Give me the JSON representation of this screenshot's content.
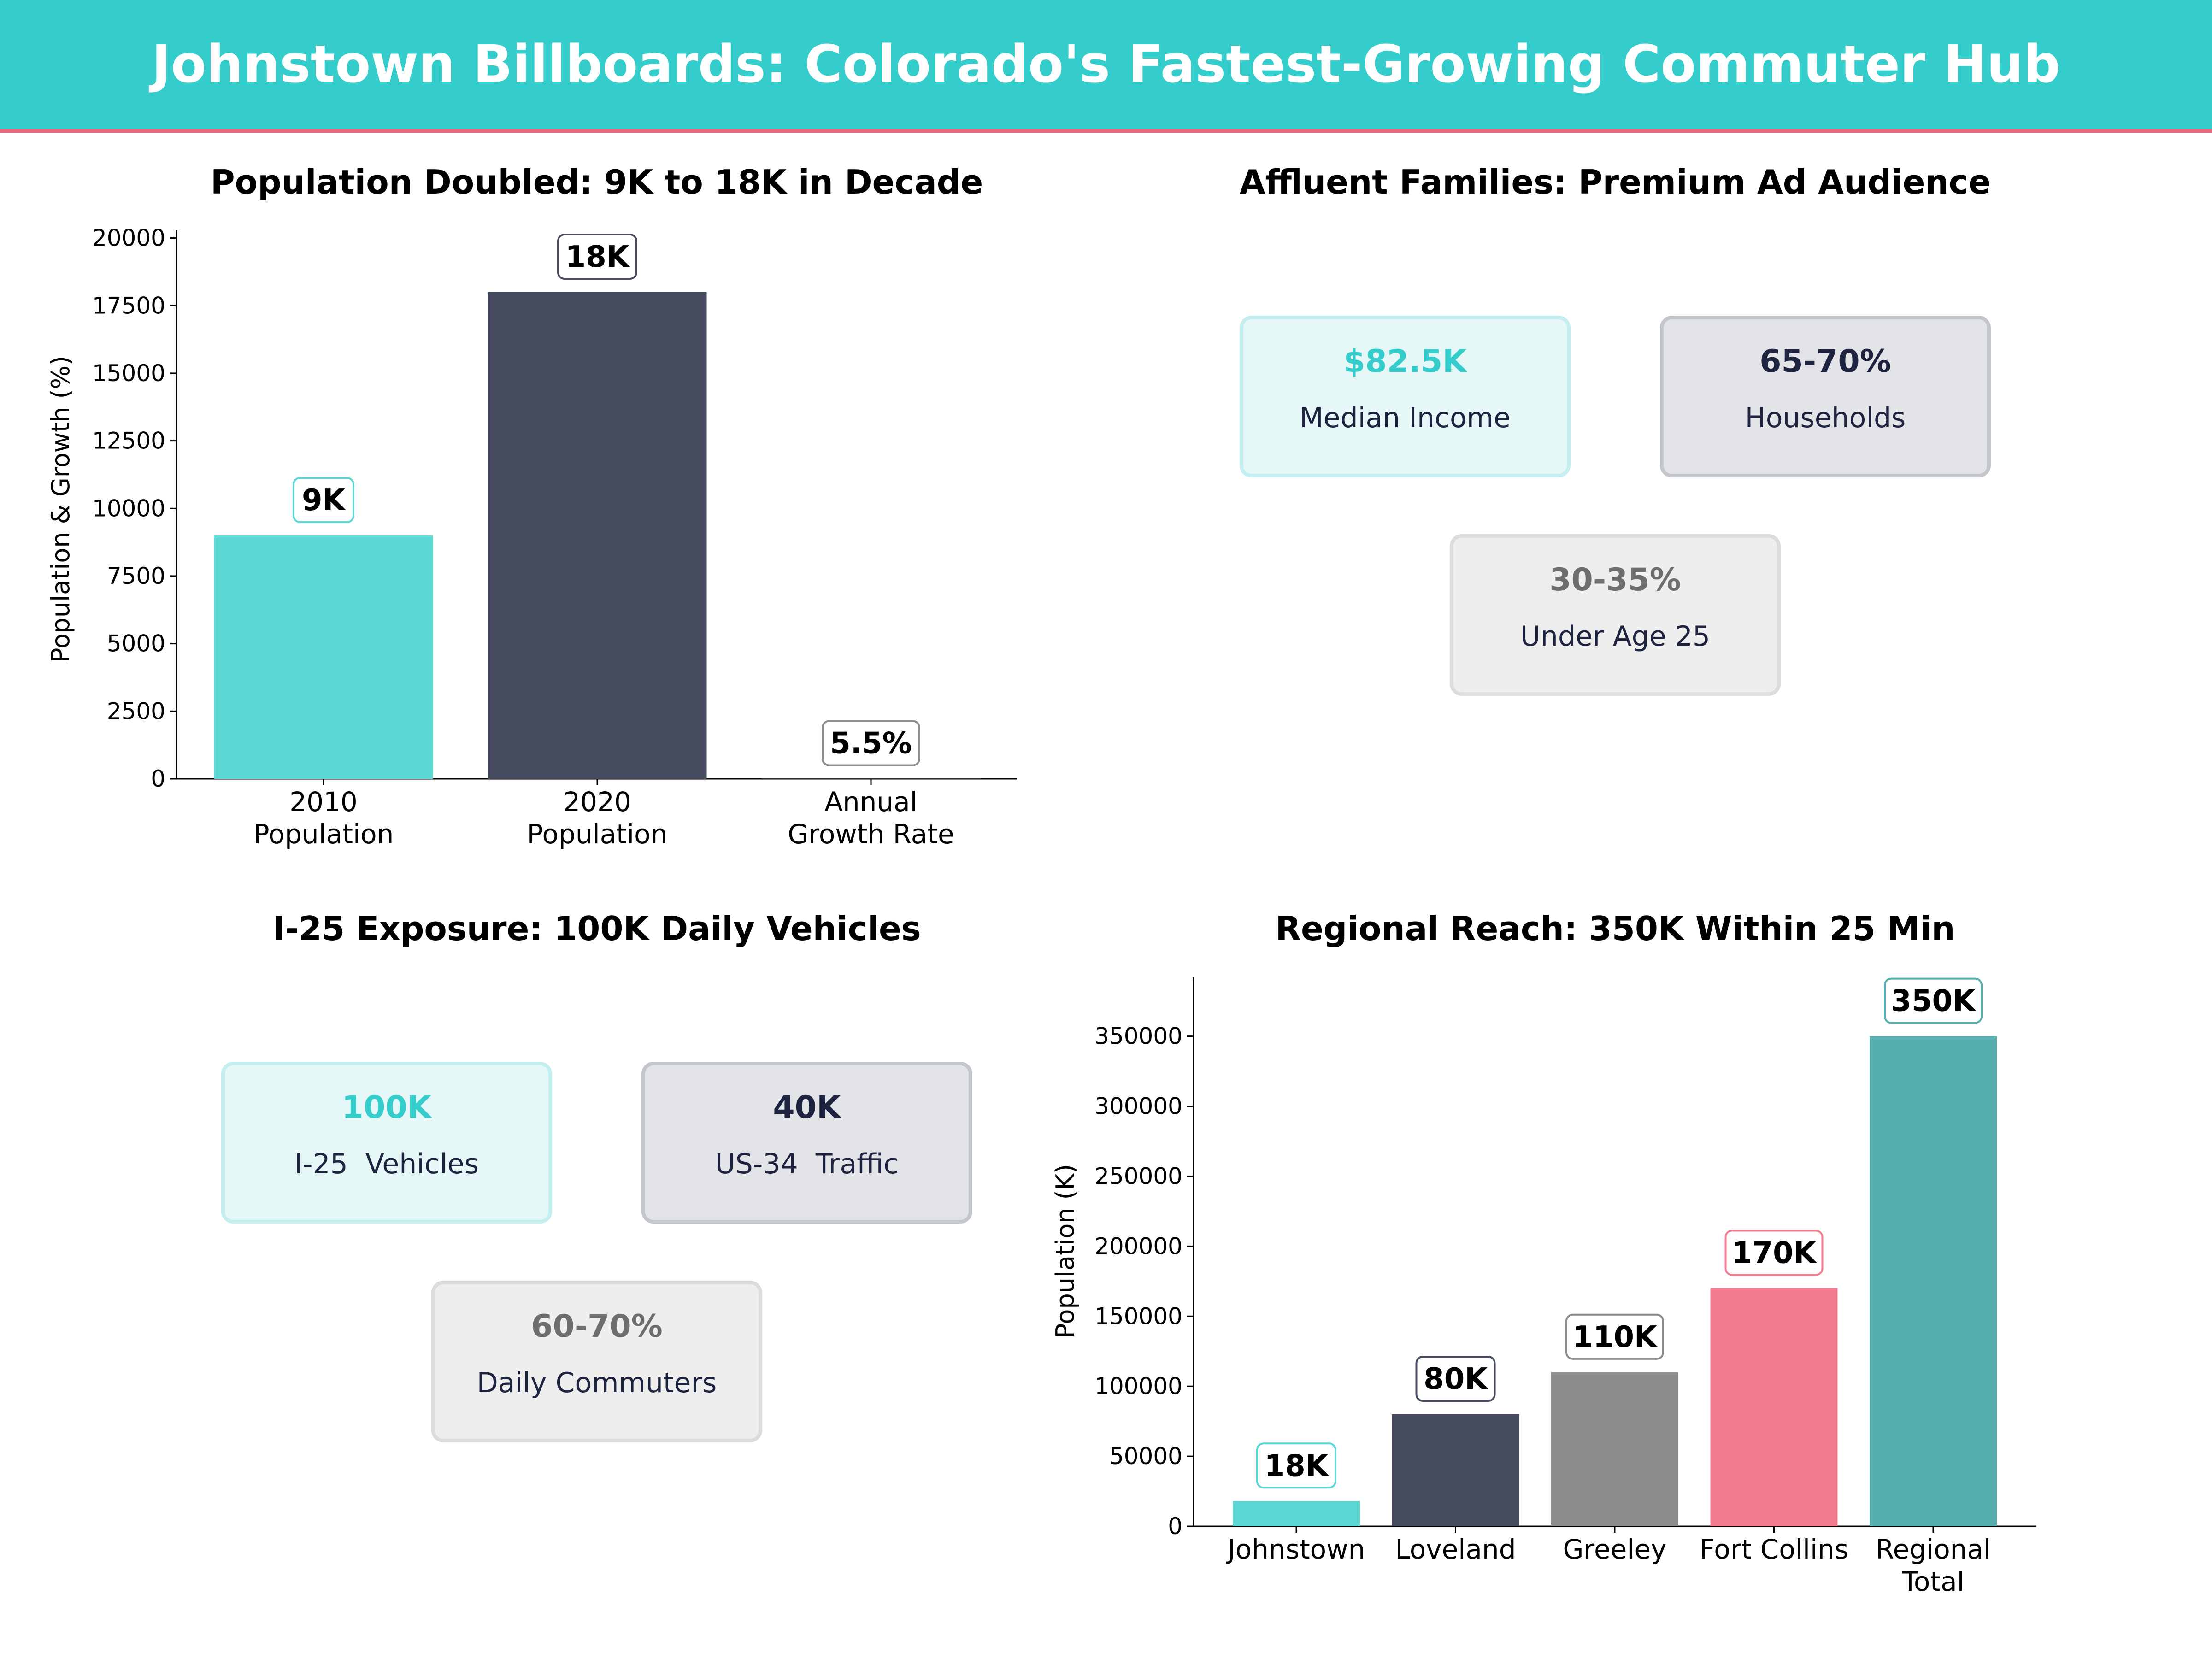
{
  "header": {
    "title": "Johnstown Billboards: Colorado's Fastest-Growing Commuter Hub",
    "bg_color": "#35CCCC",
    "accent_line_color": "#E8677A"
  },
  "chart_data": [
    {
      "type": "bar",
      "title": "Population Doubled: 9K to 18K in Decade",
      "xlabel": "",
      "ylabel": "Population & Growth (%)",
      "categories": [
        "2010\nPopulation",
        "2020\nPopulation",
        "Annual\nGrowth Rate"
      ],
      "category_lines": [
        [
          "2010",
          "Population"
        ],
        [
          "2020",
          "Population"
        ],
        [
          "Annual",
          "Growth Rate"
        ]
      ],
      "values": [
        9000,
        18000,
        5.5
      ],
      "data_labels": [
        "9K",
        "18K",
        "5.5%"
      ],
      "colors": [
        "#5CD8D4",
        "#454A5F",
        "#8C8C8C"
      ],
      "yticks": [
        "0",
        "2500",
        "5000",
        "7500",
        "10000",
        "12500",
        "15000",
        "17500",
        "20000"
      ],
      "ylim": [
        0,
        20300
      ],
      "grid": false
    },
    {
      "type": "bar",
      "title": "Regional Reach: 350K Within 25 Min",
      "xlabel": "",
      "ylabel": "Population (K)",
      "categories": [
        "Johnstown",
        "Loveland",
        "Greeley",
        "Fort Collins",
        "Regional\nTotal"
      ],
      "category_lines": [
        [
          "Johnstown"
        ],
        [
          "Loveland"
        ],
        [
          "Greeley"
        ],
        [
          "Fort Collins"
        ],
        [
          "Regional",
          "Total"
        ]
      ],
      "values": [
        18000,
        80000,
        110000,
        170000,
        350000
      ],
      "data_labels": [
        "18K",
        "80K",
        "110K",
        "170K",
        "350K"
      ],
      "colors": [
        "#5CD8D4",
        "#454A5F",
        "#8C8C8C",
        "#F47C90",
        "#56AEAE"
      ],
      "yticks": [
        "0",
        "50000",
        "100000",
        "150000",
        "200000",
        "250000",
        "300000",
        "350000"
      ],
      "ylim": [
        0,
        392000
      ],
      "grid": false
    }
  ],
  "audience_panel": {
    "title": "Affluent Families: Premium Ad Audience",
    "cards": [
      {
        "value": "$82.5K",
        "label": "Median Income"
      },
      {
        "value": "65-70%",
        "label": "Households"
      },
      {
        "value": "30-35%",
        "label": "Under Age 25"
      }
    ]
  },
  "exposure_panel": {
    "title": "I-25 Exposure: 100K Daily Vehicles",
    "cards": [
      {
        "value": "100K",
        "label": "I-25  Vehicles"
      },
      {
        "value": "40K",
        "label": "US-34  Traffic"
      },
      {
        "value": "60-70%",
        "label": "Daily Commuters"
      }
    ]
  },
  "card_styles": [
    {
      "bg": "#E6F7F7",
      "border": "#C5EEEE",
      "value_color": "#35CCCC"
    },
    {
      "bg": "#E3E4E8",
      "border": "#C4C6CE",
      "value_color": "#1E2440"
    },
    {
      "bg": "#EEEEEE",
      "border": "#DCDCDC",
      "value_color": "#6E6E6E"
    }
  ]
}
